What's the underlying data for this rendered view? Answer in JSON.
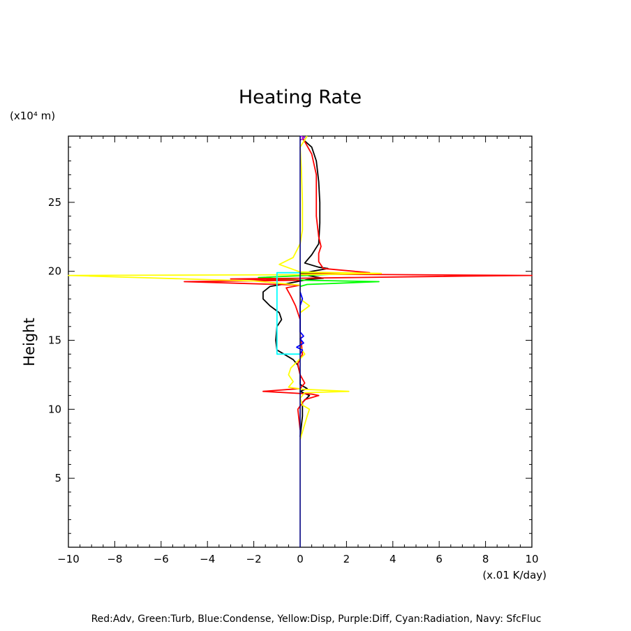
{
  "chart_data": {
    "type": "line",
    "title": "Heating Rate",
    "xlabel": "",
    "x_unit": "(x.01 K/day)",
    "ylabel": "Height",
    "y_unit": "(x10⁴ m)",
    "xlim": [
      -10,
      10
    ],
    "ylim": [
      0,
      29.8
    ],
    "x_ticks": [
      -10,
      -8,
      -6,
      -4,
      -2,
      0,
      2,
      4,
      6,
      8,
      10
    ],
    "x_tick_labels": [
      "−10",
      "−8",
      "−6",
      "−4",
      "−2",
      "0",
      "2",
      "4",
      "6",
      "8",
      "10"
    ],
    "y_ticks": [
      5,
      10,
      15,
      20,
      25
    ],
    "y_tick_labels": [
      "5",
      "10",
      "15",
      "20",
      "25"
    ],
    "grid": false,
    "caption": "Red:Adv, Green:Turb, Blue:Condense, Yellow:Disp, Purple:Diff, Cyan:Radiation, Navy: SfcFluc",
    "colors": {
      "red": "#ff0000",
      "green": "#00ff00",
      "blue": "#0000ff",
      "yellow": "#ffff00",
      "purple": "#a020f0",
      "cyan": "#00ffff",
      "navy": "#000080",
      "black": "#000000"
    },
    "series": [
      {
        "color": "#000000",
        "points": [
          [
            0.0,
            8.0
          ],
          [
            0.1,
            9.5
          ],
          [
            0.1,
            10.5
          ],
          [
            0.4,
            11.0
          ],
          [
            0.0,
            11.3
          ],
          [
            0.3,
            11.5
          ],
          [
            0.0,
            11.8
          ],
          [
            0.0,
            12.5
          ],
          [
            -0.1,
            13.2
          ],
          [
            -0.3,
            13.6
          ],
          [
            -0.7,
            14.0
          ],
          [
            -1.0,
            14.3
          ],
          [
            -1.05,
            15.0
          ],
          [
            -1.0,
            16.0
          ],
          [
            -0.8,
            16.5
          ],
          [
            -0.9,
            17.0
          ],
          [
            -1.3,
            17.5
          ],
          [
            -1.6,
            18.0
          ],
          [
            -1.6,
            18.5
          ],
          [
            -1.3,
            18.9
          ],
          [
            -0.6,
            19.1
          ],
          [
            0.3,
            19.4
          ],
          [
            1.0,
            19.5
          ],
          [
            0.0,
            19.8
          ],
          [
            0.5,
            20.0
          ],
          [
            1.2,
            20.2
          ],
          [
            0.8,
            20.3
          ],
          [
            0.2,
            20.6
          ],
          [
            0.5,
            21.2
          ],
          [
            0.8,
            22.0
          ],
          [
            0.85,
            23.5
          ],
          [
            0.85,
            25.0
          ],
          [
            0.8,
            26.5
          ],
          [
            0.7,
            28.0
          ],
          [
            0.5,
            29.0
          ],
          [
            0.1,
            29.6
          ]
        ]
      },
      {
        "color": "#00ff00",
        "points": [
          [
            0.0,
            18.9
          ],
          [
            0.3,
            19.05
          ],
          [
            3.4,
            19.25
          ],
          [
            0.2,
            19.35
          ],
          [
            -1.8,
            19.55
          ],
          [
            0.3,
            19.7
          ],
          [
            1.5,
            19.8
          ],
          [
            0.0,
            19.9
          ]
        ]
      },
      {
        "color": "#ff0000",
        "points": [
          [
            0.0,
            8.5
          ],
          [
            -0.1,
            10.0
          ],
          [
            0.2,
            10.7
          ],
          [
            0.8,
            11.0
          ],
          [
            0.5,
            11.1
          ],
          [
            -1.6,
            11.3
          ],
          [
            0.0,
            11.5
          ],
          [
            0.2,
            11.9
          ],
          [
            0.0,
            12.5
          ],
          [
            -0.1,
            13.3
          ],
          [
            0.1,
            14.0
          ],
          [
            0.05,
            14.8
          ],
          [
            0.0,
            15.5
          ],
          [
            0.0,
            16.5
          ],
          [
            -0.2,
            17.5
          ],
          [
            -0.4,
            18.2
          ],
          [
            -0.6,
            18.8
          ],
          [
            0.0,
            19.0
          ],
          [
            -5.0,
            19.25
          ],
          [
            0.0,
            19.35
          ],
          [
            -3.0,
            19.45
          ],
          [
            0.0,
            19.5
          ],
          [
            7.0,
            19.65
          ],
          [
            10.0,
            19.7
          ],
          [
            0.0,
            19.8
          ],
          [
            3.0,
            19.9
          ],
          [
            1.0,
            20.2
          ],
          [
            0.8,
            20.7
          ],
          [
            0.8,
            21.3
          ],
          [
            0.9,
            21.8
          ],
          [
            0.8,
            22.5
          ],
          [
            0.7,
            24.0
          ],
          [
            0.7,
            25.5
          ],
          [
            0.7,
            27.0
          ],
          [
            0.5,
            28.5
          ],
          [
            0.1,
            29.7
          ]
        ]
      },
      {
        "color": "#ffff00",
        "points": [
          [
            0.0,
            7.8
          ],
          [
            0.3,
            9.5
          ],
          [
            0.4,
            10.0
          ],
          [
            0.1,
            10.3
          ],
          [
            0.0,
            10.8
          ],
          [
            0.2,
            11.2
          ],
          [
            2.1,
            11.3
          ],
          [
            0.1,
            11.45
          ],
          [
            -0.5,
            11.6
          ],
          [
            -0.3,
            12.0
          ],
          [
            -0.5,
            12.5
          ],
          [
            -0.4,
            13.0
          ],
          [
            -0.1,
            13.5
          ],
          [
            0.2,
            14.0
          ],
          [
            0.0,
            14.5
          ],
          [
            0.0,
            15.5
          ],
          [
            0.0,
            16.5
          ],
          [
            0.0,
            17.0
          ],
          [
            0.4,
            17.5
          ],
          [
            0.0,
            18.0
          ],
          [
            0.0,
            19.0
          ],
          [
            -2.0,
            19.3
          ],
          [
            -7.0,
            19.55
          ],
          [
            -10.0,
            19.7
          ],
          [
            0.0,
            19.75
          ],
          [
            3.5,
            19.85
          ],
          [
            0.0,
            19.95
          ],
          [
            -0.9,
            20.5
          ],
          [
            -0.3,
            21.0
          ],
          [
            0.0,
            22.0
          ],
          [
            0.1,
            23.0
          ],
          [
            0.1,
            25.0
          ],
          [
            0.05,
            27.5
          ],
          [
            0.0,
            29.0
          ],
          [
            0.3,
            29.8
          ]
        ]
      },
      {
        "color": "#0000ff",
        "points": [
          [
            0.0,
            14.0
          ],
          [
            0.1,
            14.3
          ],
          [
            -0.15,
            14.5
          ],
          [
            0.15,
            14.8
          ],
          [
            0.0,
            15.1
          ],
          [
            0.15,
            15.3
          ],
          [
            0.0,
            15.6
          ],
          [
            0.0,
            17.5
          ],
          [
            0.1,
            18.0
          ],
          [
            0.0,
            18.5
          ]
        ]
      },
      {
        "color": "#a020f0",
        "points": [
          [
            0.0,
            29.5
          ],
          [
            0.2,
            29.7
          ],
          [
            0.0,
            29.8
          ]
        ]
      },
      {
        "color": "#00ffff",
        "points": [
          [
            -0.95,
            14.0
          ],
          [
            0.0,
            14.0
          ],
          [
            -1.0,
            14.0
          ],
          [
            -1.0,
            19.9
          ],
          [
            0.0,
            19.9
          ]
        ]
      },
      {
        "color": "#000080",
        "points": [
          [
            0.0,
            0.0
          ],
          [
            0.0,
            29.8
          ]
        ]
      }
    ]
  }
}
